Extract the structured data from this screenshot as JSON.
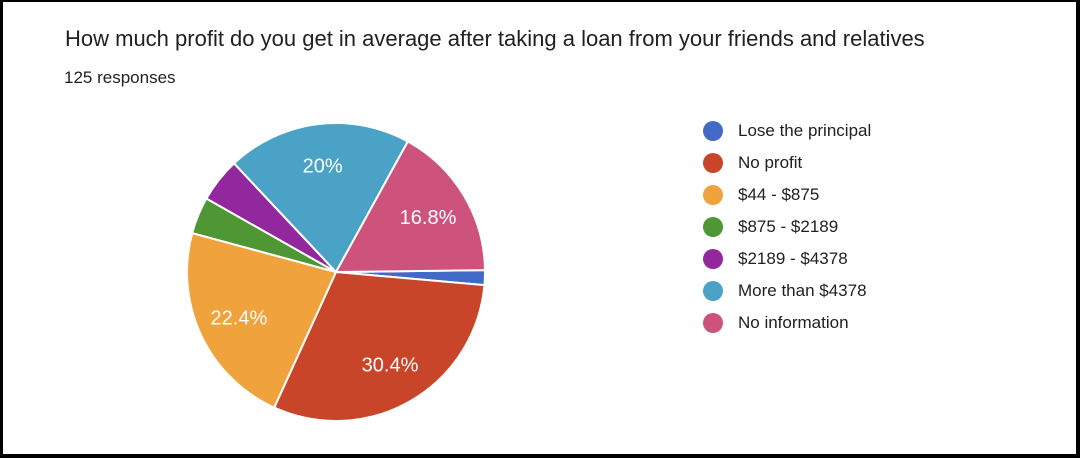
{
  "header": {
    "title": "How much profit do you get in average after taking a loan from your friends and relatives",
    "responses": "125 responses"
  },
  "chart_data": {
    "type": "pie",
    "title": "How much profit do you get in average after taking a loan from your friends and relatives",
    "subtitle": "125 responses",
    "total_responses": 125,
    "legend_position": "right",
    "start_angle_deg": 89.3,
    "slice_label_color": "#ffffff",
    "slices": [
      {
        "label": "Lose the principal",
        "percent": 1.6,
        "color": "#4269C6",
        "display_label": ""
      },
      {
        "label": "No profit",
        "percent": 30.4,
        "color": "#C9452A",
        "display_label": "30.4%"
      },
      {
        "label": "$44 - $875",
        "percent": 22.4,
        "color": "#F0A23C",
        "display_label": "22.4%"
      },
      {
        "label": "$875 - $2189",
        "percent": 4.0,
        "color": "#4F9634",
        "display_label": ""
      },
      {
        "label": "$2189 - $4378",
        "percent": 4.8,
        "color": "#92279E",
        "display_label": ""
      },
      {
        "label": "More than $4378",
        "percent": 20.0,
        "color": "#4AA3C7",
        "display_label": "20%"
      },
      {
        "label": "No information",
        "percent": 16.8,
        "color": "#CE537C",
        "display_label": "16.8%"
      }
    ]
  }
}
